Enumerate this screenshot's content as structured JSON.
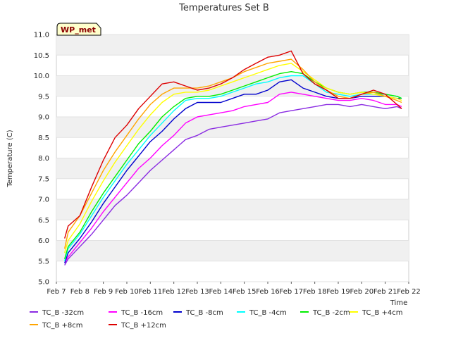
{
  "chart_data": {
    "type": "line",
    "title": "Temperatures Set B",
    "xlabel": "Time",
    "ylabel": "Temperature (C)",
    "ylim": [
      5.0,
      11.0
    ],
    "xlim": [
      "Feb 7",
      "Feb 22"
    ],
    "y_ticks": [
      "5.0",
      "5.5",
      "6.0",
      "6.5",
      "7.0",
      "7.5",
      "8.0",
      "8.5",
      "9.0",
      "9.5",
      "10.0",
      "10.5",
      "11.0"
    ],
    "x_ticks": [
      "Feb 7",
      "Feb 8",
      "Feb 9",
      "Feb 10",
      "Feb 11",
      "Feb 12",
      "Feb 13",
      "Feb 14",
      "Feb 15",
      "Feb 16",
      "Feb 17",
      "Feb 18",
      "Feb 19",
      "Feb 20",
      "Feb 21",
      "Feb 22"
    ],
    "grid": "horizontal bands",
    "legend_position": "bottom",
    "badge": "WP_met",
    "x_day_offsets": [
      0.35,
      0.5,
      1,
      1.5,
      2,
      2.5,
      3,
      3.5,
      4,
      4.5,
      5,
      5.5,
      6,
      6.5,
      7,
      7.5,
      8,
      8.5,
      9,
      9.5,
      10,
      10.5,
      11,
      11.5,
      12,
      12.5,
      13,
      13.5,
      14,
      14.5,
      14.7
    ],
    "series": [
      {
        "name": "TC_B -32cm",
        "color": "#8a2be2",
        "values": [
          5.4,
          5.55,
          5.85,
          6.15,
          6.5,
          6.85,
          7.1,
          7.4,
          7.7,
          7.95,
          8.2,
          8.45,
          8.55,
          8.7,
          8.75,
          8.8,
          8.85,
          8.9,
          8.95,
          9.1,
          9.15,
          9.2,
          9.25,
          9.3,
          9.3,
          9.25,
          9.3,
          9.25,
          9.2,
          9.25,
          9.2
        ]
      },
      {
        "name": "TC_B -16cm",
        "color": "#ff00ff",
        "values": [
          5.45,
          5.6,
          5.95,
          6.3,
          6.7,
          7.05,
          7.4,
          7.75,
          8.0,
          8.3,
          8.55,
          8.85,
          9.0,
          9.05,
          9.1,
          9.15,
          9.25,
          9.3,
          9.35,
          9.55,
          9.6,
          9.55,
          9.5,
          9.45,
          9.4,
          9.4,
          9.45,
          9.4,
          9.3,
          9.3,
          9.25
        ]
      },
      {
        "name": "TC_B -8cm",
        "color": "#0000cd",
        "values": [
          5.45,
          5.7,
          6.05,
          6.45,
          6.9,
          7.3,
          7.7,
          8.05,
          8.4,
          8.65,
          8.95,
          9.2,
          9.35,
          9.35,
          9.35,
          9.45,
          9.55,
          9.55,
          9.65,
          9.85,
          9.9,
          9.7,
          9.6,
          9.5,
          9.45,
          9.45,
          9.5,
          9.5,
          9.5,
          9.45,
          9.45
        ]
      },
      {
        "name": "TC_B -4cm",
        "color": "#00ffff",
        "values": [
          5.5,
          5.8,
          6.15,
          6.6,
          7.05,
          7.45,
          7.85,
          8.2,
          8.55,
          8.85,
          9.15,
          9.4,
          9.45,
          9.45,
          9.5,
          9.6,
          9.7,
          9.8,
          9.85,
          9.95,
          10.0,
          10.0,
          9.8,
          9.6,
          9.55,
          9.5,
          9.55,
          9.55,
          9.55,
          9.5,
          9.45
        ]
      },
      {
        "name": "TC_B -2cm",
        "color": "#00ee00",
        "values": [
          5.55,
          5.85,
          6.2,
          6.7,
          7.15,
          7.55,
          7.95,
          8.35,
          8.65,
          9.0,
          9.25,
          9.45,
          9.5,
          9.5,
          9.55,
          9.65,
          9.75,
          9.85,
          9.95,
          10.05,
          10.1,
          10.05,
          9.85,
          9.7,
          9.6,
          9.55,
          9.6,
          9.6,
          9.55,
          9.5,
          9.45
        ]
      },
      {
        "name": "TC_B +4cm",
        "color": "#ffff00",
        "values": [
          5.7,
          6.0,
          6.4,
          6.95,
          7.45,
          7.9,
          8.3,
          8.7,
          9.05,
          9.35,
          9.55,
          9.6,
          9.6,
          9.65,
          9.75,
          9.85,
          9.95,
          10.05,
          10.15,
          10.25,
          10.3,
          10.1,
          9.9,
          9.7,
          9.6,
          9.55,
          9.6,
          9.55,
          9.5,
          9.45,
          9.4
        ]
      },
      {
        "name": "TC_B +8cm",
        "color": "#ffa500",
        "values": [
          5.8,
          6.2,
          6.6,
          7.15,
          7.7,
          8.15,
          8.55,
          8.95,
          9.3,
          9.55,
          9.7,
          9.7,
          9.7,
          9.75,
          9.85,
          9.95,
          10.1,
          10.2,
          10.3,
          10.35,
          10.4,
          10.15,
          9.85,
          9.65,
          9.5,
          9.45,
          9.55,
          9.6,
          9.5,
          9.4,
          9.35
        ]
      },
      {
        "name": "TC_B +12cm",
        "color": "#dd0000",
        "values": [
          6.05,
          6.35,
          6.6,
          7.3,
          7.95,
          8.5,
          8.8,
          9.2,
          9.5,
          9.8,
          9.85,
          9.75,
          9.65,
          9.7,
          9.8,
          9.95,
          10.15,
          10.3,
          10.45,
          10.5,
          10.6,
          10.05,
          9.8,
          9.65,
          9.45,
          9.45,
          9.55,
          9.65,
          9.55,
          9.3,
          9.2
        ]
      }
    ]
  }
}
